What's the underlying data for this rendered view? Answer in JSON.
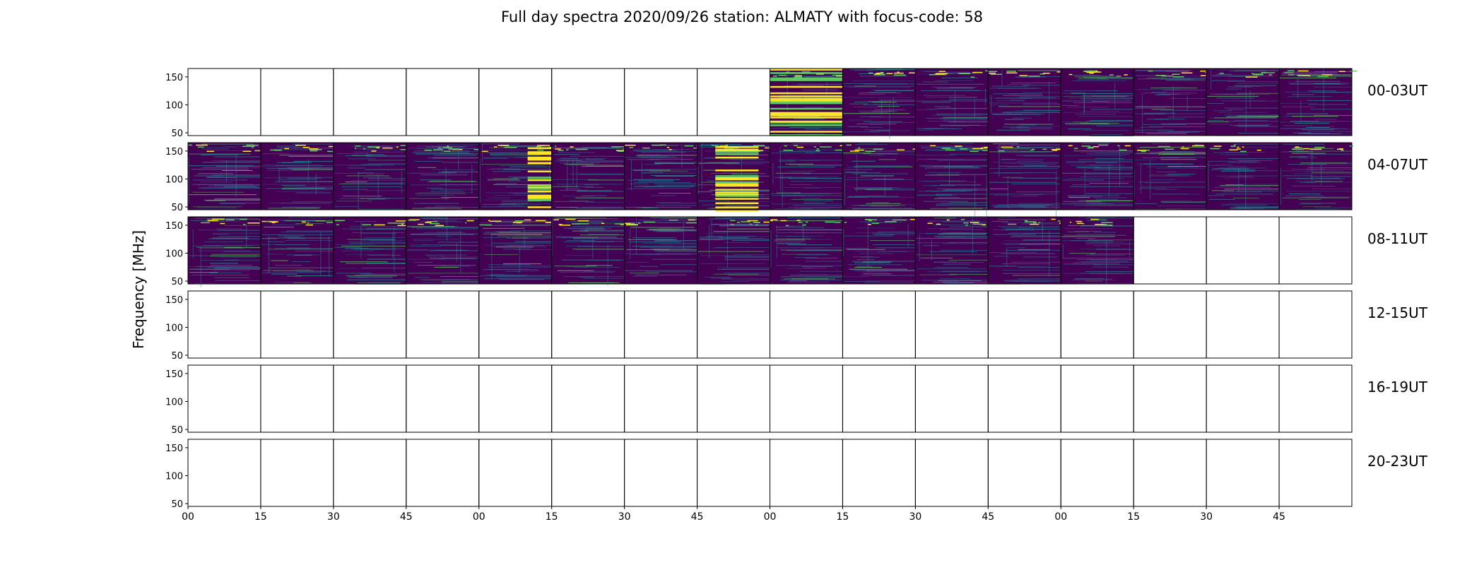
{
  "figure": {
    "title": "Full day spectra 2020/09/26 station: ALMATY with focus-code: 58",
    "ylabel": "Frequency [MHz]"
  },
  "chart_data": {
    "type": "heatmap",
    "title": "Full day spectra 2020/09/26 station: ALMATY with focus-code: 58",
    "ylabel": "Frequency [MHz]",
    "xlabel": "",
    "ylim": [
      45,
      165
    ],
    "y_ticks": [
      50,
      100,
      150
    ],
    "x_tick_labels": [
      "00",
      "15",
      "30",
      "45",
      "00",
      "15",
      "30",
      "45",
      "00",
      "15",
      "30",
      "45",
      "00",
      "15",
      "30",
      "45"
    ],
    "colormap": "viridis",
    "panels_per_row": 16,
    "rows": [
      {
        "label": "00-03UT",
        "filled": [
          false,
          false,
          false,
          false,
          false,
          false,
          false,
          false,
          true,
          true,
          true,
          true,
          true,
          true,
          true,
          true
        ]
      },
      {
        "label": "04-07UT",
        "filled": [
          true,
          true,
          true,
          true,
          true,
          true,
          true,
          true,
          true,
          true,
          true,
          true,
          true,
          true,
          true,
          true
        ]
      },
      {
        "label": "08-11UT",
        "filled": [
          true,
          true,
          true,
          true,
          true,
          true,
          true,
          true,
          true,
          true,
          true,
          true,
          true,
          false,
          false,
          false
        ]
      },
      {
        "label": "12-15UT",
        "filled": [
          false,
          false,
          false,
          false,
          false,
          false,
          false,
          false,
          false,
          false,
          false,
          false,
          false,
          false,
          false,
          false
        ]
      },
      {
        "label": "16-19UT",
        "filled": [
          false,
          false,
          false,
          false,
          false,
          false,
          false,
          false,
          false,
          false,
          false,
          false,
          false,
          false,
          false,
          false
        ]
      },
      {
        "label": "20-23UT",
        "filled": [
          false,
          false,
          false,
          false,
          false,
          false,
          false,
          false,
          false,
          false,
          false,
          false,
          false,
          false,
          false,
          false
        ]
      }
    ],
    "colors": {
      "background": "#440154",
      "mid": "#31688e",
      "teal": "#21918c",
      "green": "#5ec962",
      "yellow": "#fde725"
    }
  }
}
